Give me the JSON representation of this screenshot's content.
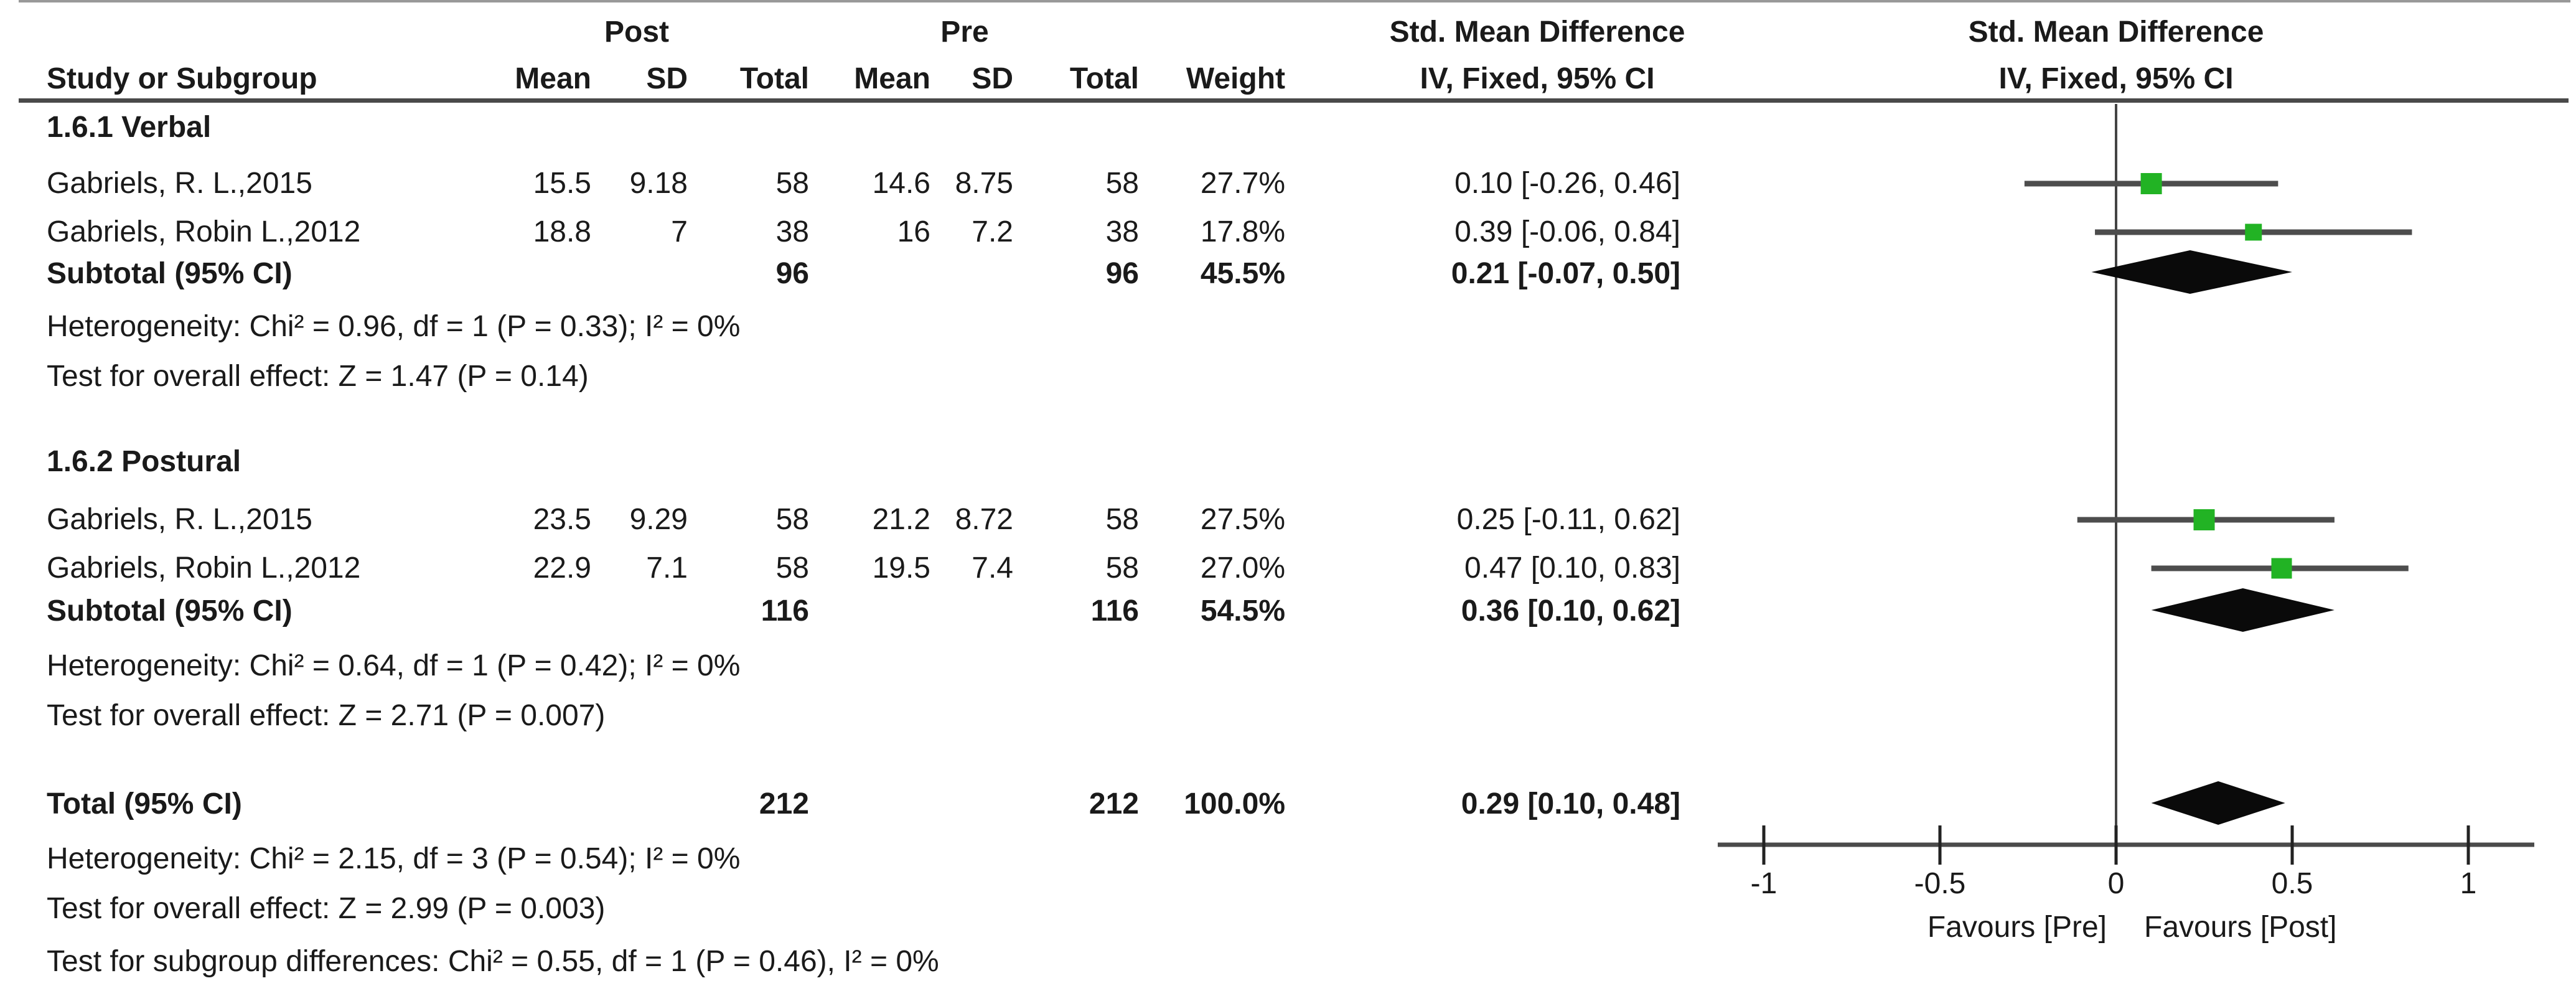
{
  "colors": {
    "marker": "#22b324",
    "diamond": "#0a0a0a",
    "ci_line": "#4d4d4d",
    "axis": "#4a4a4a",
    "zero_line": "#444444",
    "text": "#1a1a1a",
    "top_border": "#999999"
  },
  "header": {
    "post_group": "Post",
    "pre_group": "Pre",
    "smd_left": "Std. Mean Difference",
    "smd_right": "Std. Mean Difference",
    "study": "Study or Subgroup",
    "mean": "Mean",
    "sd": "SD",
    "total": "Total",
    "mean2": "Mean",
    "sd2": "SD",
    "total2": "Total",
    "weight": "Weight",
    "ci_left": "IV, Fixed, 95% CI",
    "ci_right": "IV, Fixed, 95% CI"
  },
  "groups": [
    {
      "label": "1.6.1 Verbal",
      "rows": [
        {
          "study": "Gabriels, R. L.,2015",
          "post_mean": "15.5",
          "post_sd": "9.18",
          "post_total": "58",
          "pre_mean": "14.6",
          "pre_sd": "8.75",
          "pre_total": "58",
          "weight": "27.7%",
          "ci": "0.10 [-0.26, 0.46]"
        },
        {
          "study": "Gabriels, Robin L.,2012",
          "post_mean": "18.8",
          "post_sd": "7",
          "post_total": "38",
          "pre_mean": "16",
          "pre_sd": "7.2",
          "pre_total": "38",
          "weight": "17.8%",
          "ci": "0.39 [-0.06, 0.84]"
        }
      ],
      "subtotal": {
        "label": "Subtotal (95% CI)",
        "post_total": "96",
        "pre_total": "96",
        "weight": "45.5%",
        "ci": "0.21 [-0.07, 0.50]"
      },
      "heterogeneity": "Heterogeneity: Chi² = 0.96, df = 1 (P = 0.33); I² = 0%",
      "overall": "Test for overall effect: Z = 1.47 (P = 0.14)"
    },
    {
      "label": "1.6.2 Postural",
      "rows": [
        {
          "study": "Gabriels, R. L.,2015",
          "post_mean": "23.5",
          "post_sd": "9.29",
          "post_total": "58",
          "pre_mean": "21.2",
          "pre_sd": "8.72",
          "pre_total": "58",
          "weight": "27.5%",
          "ci": "0.25 [-0.11, 0.62]"
        },
        {
          "study": "Gabriels, Robin L.,2012",
          "post_mean": "22.9",
          "post_sd": "7.1",
          "post_total": "58",
          "pre_mean": "19.5",
          "pre_sd": "7.4",
          "pre_total": "58",
          "weight": "27.0%",
          "ci": "0.47 [0.10, 0.83]"
        }
      ],
      "subtotal": {
        "label": "Subtotal (95% CI)",
        "post_total": "116",
        "pre_total": "116",
        "weight": "54.5%",
        "ci": "0.36 [0.10, 0.62]"
      },
      "heterogeneity": "Heterogeneity: Chi² = 0.64, df = 1 (P = 0.42); I² = 0%",
      "overall": "Test for overall effect: Z = 2.71 (P = 0.007)"
    }
  ],
  "total_row": {
    "label": "Total (95% CI)",
    "post_total": "212",
    "pre_total": "212",
    "weight": "100.0%",
    "ci": "0.29 [0.10, 0.48]"
  },
  "footer": {
    "heterogeneity": "Heterogeneity: Chi² = 2.15, df = 3 (P = 0.54); I² = 0%",
    "overall": "Test for overall effect: Z = 2.99 (P = 0.003)",
    "subgroup": "Test for subgroup differences: Chi² = 0.55, df = 1 (P = 0.46), I² = 0%"
  },
  "axis": {
    "favours_left": "Favours [Pre]",
    "favours_right": "Favours [Post]"
  },
  "chart_data": {
    "type": "forest",
    "effect_measure": "Std. Mean Difference",
    "model": "IV, Fixed, 95% CI",
    "axis": {
      "tick_values": [
        -1,
        -0.5,
        0,
        0.5,
        1
      ],
      "tick_labels": [
        "-1",
        "-0.5",
        "0",
        "0.5",
        "1"
      ],
      "xlim": [
        -1.15,
        1.2
      ],
      "label_left": "Favours [Pre]",
      "label_right": "Favours [Post]"
    },
    "subgroups": [
      {
        "name": "1.6.1 Verbal",
        "studies": [
          {
            "study": "Gabriels, R. L.,2015",
            "est": 0.1,
            "ci": [
              -0.26,
              0.46
            ],
            "weight_pct": 27.7
          },
          {
            "study": "Gabriels, Robin L.,2012",
            "est": 0.39,
            "ci": [
              -0.06,
              0.84
            ],
            "weight_pct": 17.8
          }
        ],
        "subtotal": {
          "est": 0.21,
          "ci": [
            -0.07,
            0.5
          ],
          "weight_pct": 45.5
        },
        "heterogeneity": {
          "chi2": 0.96,
          "df": 1,
          "p": 0.33,
          "i2_pct": 0
        },
        "overall_effect": {
          "z": 1.47,
          "p": 0.14
        }
      },
      {
        "name": "1.6.2 Postural",
        "studies": [
          {
            "study": "Gabriels, R. L.,2015",
            "est": 0.25,
            "ci": [
              -0.11,
              0.62
            ],
            "weight_pct": 27.5
          },
          {
            "study": "Gabriels, Robin L.,2012",
            "est": 0.47,
            "ci": [
              0.1,
              0.83
            ],
            "weight_pct": 27.0
          }
        ],
        "subtotal": {
          "est": 0.36,
          "ci": [
            0.1,
            0.62
          ],
          "weight_pct": 54.5
        },
        "heterogeneity": {
          "chi2": 0.64,
          "df": 1,
          "p": 0.42,
          "i2_pct": 0
        },
        "overall_effect": {
          "z": 2.71,
          "p": 0.007
        }
      }
    ],
    "total": {
      "est": 0.29,
      "ci": [
        0.1,
        0.48
      ],
      "weight_pct": 100.0
    },
    "total_heterogeneity": {
      "chi2": 2.15,
      "df": 3,
      "p": 0.54,
      "i2_pct": 0
    },
    "total_overall_effect": {
      "z": 2.99,
      "p": 0.003
    },
    "subgroup_differences": {
      "chi2": 0.55,
      "df": 1,
      "p": 0.46,
      "i2_pct": 0
    },
    "forest_items": [
      {
        "kind": "study",
        "est": 0.1,
        "lo": -0.26,
        "hi": 0.46,
        "weight": 27.7
      },
      {
        "kind": "study",
        "est": 0.39,
        "lo": -0.06,
        "hi": 0.84,
        "weight": 17.8
      },
      {
        "kind": "subtotal",
        "est": 0.21,
        "lo": -0.07,
        "hi": 0.5,
        "weight": 45.5
      },
      {
        "kind": "study",
        "est": 0.25,
        "lo": -0.11,
        "hi": 0.62,
        "weight": 27.5
      },
      {
        "kind": "study",
        "est": 0.47,
        "lo": 0.1,
        "hi": 0.83,
        "weight": 27.0
      },
      {
        "kind": "subtotal",
        "est": 0.36,
        "lo": 0.1,
        "hi": 0.62,
        "weight": 54.5
      },
      {
        "kind": "total",
        "est": 0.29,
        "lo": 0.1,
        "hi": 0.48,
        "weight": 100.0
      }
    ]
  }
}
